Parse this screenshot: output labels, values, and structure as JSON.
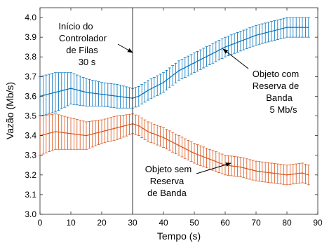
{
  "chart_data": {
    "type": "line",
    "xlabel": "Tempo (s)",
    "ylabel": "Vazão (Mb/s)",
    "xlim": [
      0,
      90
    ],
    "ylim": [
      3.0,
      4.05
    ],
    "x_ticks": [
      "0",
      "10",
      "20",
      "30",
      "40",
      "50",
      "60",
      "70",
      "80",
      "90"
    ],
    "y_ticks": [
      "3.0",
      "3.1",
      "3.2",
      "3.3",
      "3.4",
      "3.5",
      "3.6",
      "3.7",
      "3.8",
      "3.9",
      "4.0"
    ],
    "grid": false,
    "vline_x": 30,
    "x": [
      0,
      5,
      10,
      15,
      20,
      25,
      30,
      32,
      35,
      40,
      45,
      50,
      55,
      60,
      65,
      70,
      75,
      80,
      85,
      87
    ],
    "series": [
      {
        "color": "#0072bd",
        "values": [
          3.6,
          3.62,
          3.64,
          3.62,
          3.61,
          3.6,
          3.59,
          3.6,
          3.63,
          3.67,
          3.73,
          3.77,
          3.81,
          3.85,
          3.88,
          3.91,
          3.93,
          3.95,
          3.95,
          3.95
        ],
        "error": [
          0.1,
          0.1,
          0.08,
          0.07,
          0.06,
          0.06,
          0.05,
          0.05,
          0.05,
          0.05,
          0.05,
          0.05,
          0.05,
          0.05,
          0.05,
          0.05,
          0.05,
          0.05,
          0.05,
          0.05
        ]
      },
      {
        "color": "#d95319",
        "values": [
          3.4,
          3.42,
          3.41,
          3.4,
          3.42,
          3.44,
          3.46,
          3.45,
          3.42,
          3.39,
          3.35,
          3.31,
          3.28,
          3.25,
          3.24,
          3.22,
          3.21,
          3.2,
          3.21,
          3.2
        ],
        "error": [
          0.1,
          0.09,
          0.08,
          0.07,
          0.06,
          0.06,
          0.05,
          0.05,
          0.05,
          0.05,
          0.05,
          0.05,
          0.05,
          0.05,
          0.05,
          0.05,
          0.05,
          0.05,
          0.05,
          0.05
        ]
      }
    ],
    "annotations": [
      {
        "id": "controller",
        "lines": [
          "Início do",
          "Controlador",
          "de Filas",
          "30 s"
        ]
      },
      {
        "id": "with-reservation",
        "lines": [
          "Objeto com",
          "Reserva de",
          "Banda",
          "5 Mb/s"
        ]
      },
      {
        "id": "without-reservation",
        "lines": [
          "Objeto sem",
          "Reserva",
          "de Banda"
        ]
      }
    ]
  }
}
